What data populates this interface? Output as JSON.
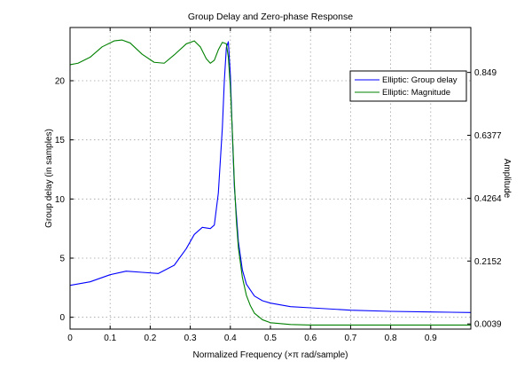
{
  "chart_data": {
    "type": "line",
    "title": "Group Delay and Zero-phase Response",
    "xlabel": "Normalized Frequency (×π rad/sample)",
    "ylabel_left": "Group delay (in samples)",
    "ylabel_right": "Amplitude",
    "xlim": [
      0,
      1
    ],
    "ylim_left": [
      -1,
      24.5
    ],
    "ylim_right": [
      -0.0135,
      1.0
    ],
    "x_ticks": [
      "0",
      "0.1",
      "0.2",
      "0.3",
      "0.4",
      "0.5",
      "0.6",
      "0.7",
      "0.8",
      "0.9"
    ],
    "y_ticks_left": [
      "0",
      "5",
      "10",
      "15",
      "20"
    ],
    "y_ticks_right": [
      "0.0039",
      "0.2152",
      "0.4264",
      "0.6377",
      "0.849"
    ],
    "grid": true,
    "legend_position": "top-right",
    "series": [
      {
        "name": "Elliptic: Group delay",
        "axis": "left",
        "color": "#0000ff",
        "x": [
          0,
          0.05,
          0.1,
          0.14,
          0.18,
          0.22,
          0.26,
          0.29,
          0.31,
          0.33,
          0.35,
          0.36,
          0.37,
          0.38,
          0.385,
          0.39,
          0.395,
          0.4,
          0.405,
          0.41,
          0.42,
          0.43,
          0.44,
          0.46,
          0.48,
          0.5,
          0.55,
          0.6,
          0.7,
          0.8,
          0.9,
          1.0
        ],
        "y": [
          2.7,
          3.0,
          3.6,
          3.9,
          3.8,
          3.7,
          4.4,
          5.8,
          7.0,
          7.6,
          7.5,
          7.8,
          10.5,
          16.0,
          20.0,
          22.8,
          23.3,
          20.5,
          15.5,
          11.0,
          6.4,
          4.0,
          2.8,
          1.8,
          1.4,
          1.2,
          0.9,
          0.8,
          0.6,
          0.5,
          0.45,
          0.4
        ]
      },
      {
        "name": "Elliptic: Magnitude",
        "axis": "right",
        "color": "#008000",
        "x": [
          0,
          0.02,
          0.05,
          0.08,
          0.11,
          0.13,
          0.15,
          0.18,
          0.21,
          0.235,
          0.26,
          0.29,
          0.31,
          0.325,
          0.34,
          0.35,
          0.36,
          0.37,
          0.38,
          0.39,
          0.395,
          0.4,
          0.405,
          0.41,
          0.415,
          0.42,
          0.43,
          0.44,
          0.45,
          0.46,
          0.48,
          0.5,
          0.55,
          0.6,
          0.7,
          0.8,
          0.9,
          1.0
        ],
        "y": [
          0.875,
          0.88,
          0.9,
          0.935,
          0.955,
          0.958,
          0.948,
          0.91,
          0.883,
          0.88,
          0.908,
          0.945,
          0.955,
          0.935,
          0.895,
          0.88,
          0.89,
          0.925,
          0.95,
          0.945,
          0.9,
          0.8,
          0.65,
          0.48,
          0.35,
          0.26,
          0.16,
          0.1,
          0.065,
          0.04,
          0.018,
          0.008,
          0.002,
          0.0,
          0.0,
          0.0,
          0.0,
          0.0
        ]
      }
    ]
  }
}
